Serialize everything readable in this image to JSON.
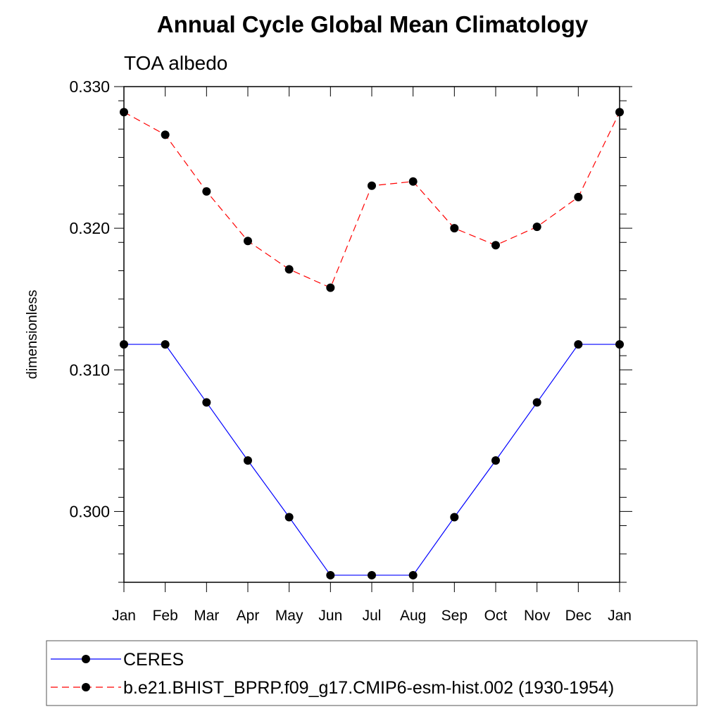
{
  "chart_data": {
    "type": "line",
    "title": "Annual Cycle Global Mean Climatology",
    "subtitle": "TOA albedo",
    "xlabel": "",
    "ylabel": "dimensionless",
    "categories": [
      "Jan",
      "Feb",
      "Mar",
      "Apr",
      "May",
      "Jun",
      "Jul",
      "Aug",
      "Sep",
      "Oct",
      "Nov",
      "Dec",
      "Jan"
    ],
    "ylim": [
      0.295,
      0.33
    ],
    "yticks": [
      "0.300",
      "0.310",
      "0.320",
      "0.330"
    ],
    "yticks_values": [
      0.3,
      0.31,
      0.32,
      0.33
    ],
    "grid": false,
    "legend_position": "bottom",
    "series": [
      {
        "name": "CERES",
        "color": "#0000ff",
        "style": "solid",
        "values": [
          0.3118,
          0.3118,
          0.3077,
          0.3036,
          0.2996,
          0.2955,
          0.2955,
          0.2955,
          0.2996,
          0.3036,
          0.3077,
          0.3118,
          0.3118
        ]
      },
      {
        "name": "b.e21.BHIST_BPRP.f09_g17.CMIP6-esm-hist.002 (1930-1954)",
        "color": "#ff0000",
        "style": "dashed",
        "values": [
          0.3282,
          0.3266,
          0.3226,
          0.3191,
          0.3171,
          0.3158,
          0.323,
          0.3233,
          0.32,
          0.3188,
          0.3201,
          0.3222,
          0.3282
        ]
      }
    ]
  }
}
